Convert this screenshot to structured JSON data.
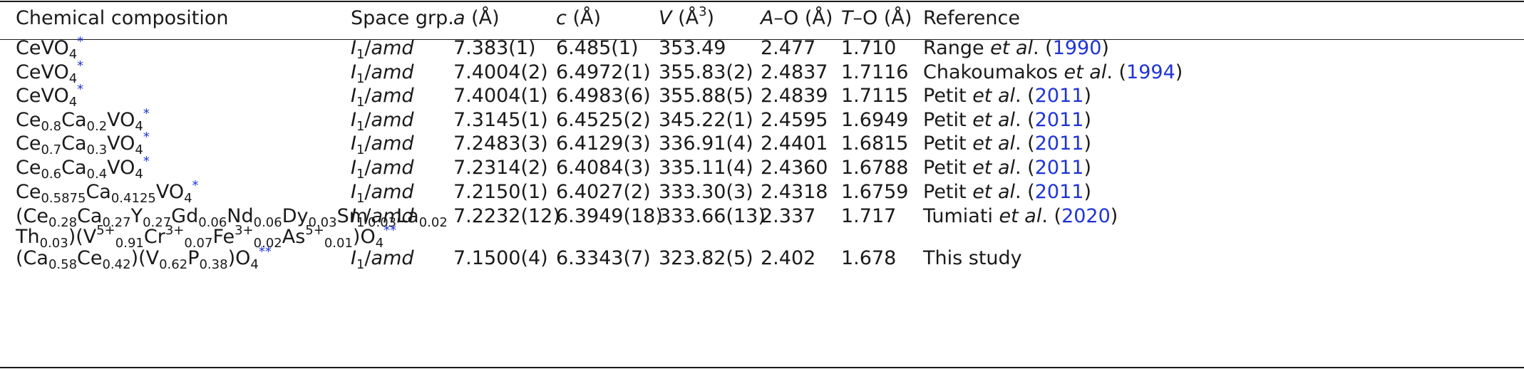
{
  "table": {
    "headers": {
      "composition": "Chemical composition",
      "space_group": "Space grp.",
      "a_sym": "a",
      "a_unit": " (Å)",
      "c_sym": "c",
      "c_unit": " (Å)",
      "v_sym": "V",
      "v_unit_pre": " (Å",
      "v_unit_sup": "3",
      "v_unit_post": ")",
      "ao_sym": "A",
      "ao_rest": "–O (Å)",
      "to_sym": "T",
      "to_rest": "–O (Å)",
      "reference": "Reference"
    },
    "space_group": {
      "italic_pre": "I",
      "sub": "1",
      "slash": "/",
      "italic_post": "amd"
    },
    "rows": [
      {
        "formula": [
          {
            "t": "CeVO"
          },
          {
            "b": "4"
          },
          {
            "star": "*"
          }
        ],
        "a": "7.383(1)",
        "c": "6.485(1)",
        "v": "353.49",
        "ao": "2.477",
        "to": "1.710",
        "ref_author": "Range ",
        "ref_etal": "et al",
        "ref_dot": ". (",
        "ref_year": "1990",
        "ref_close": ")"
      },
      {
        "formula": [
          {
            "t": "CeVO"
          },
          {
            "b": "4"
          },
          {
            "star": "*"
          }
        ],
        "a": "7.4004(2)",
        "c": "6.4972(1)",
        "v": "355.83(2)",
        "ao": "2.4837",
        "to": "1.7116",
        "ref_author": "Chakoumakos ",
        "ref_etal": "et al",
        "ref_dot": ". (",
        "ref_year": "1994",
        "ref_close": ")"
      },
      {
        "formula": [
          {
            "t": "CeVO"
          },
          {
            "b": "4"
          },
          {
            "star": "*"
          }
        ],
        "a": "7.4004(1)",
        "c": "6.4983(6)",
        "v": "355.88(5)",
        "ao": "2.4839",
        "to": "1.7115",
        "ref_author": "Petit ",
        "ref_etal": "et al",
        "ref_dot": ". (",
        "ref_year": "2011",
        "ref_close": ")"
      },
      {
        "formula": [
          {
            "t": "Ce"
          },
          {
            "b": "0.8"
          },
          {
            "t": "Ca"
          },
          {
            "b": "0.2"
          },
          {
            "t": "VO"
          },
          {
            "b": "4"
          },
          {
            "star": "*"
          }
        ],
        "a": "7.3145(1)",
        "c": "6.4525(2)",
        "v": "345.22(1)",
        "ao": "2.4595",
        "to": "1.6949",
        "ref_author": "Petit ",
        "ref_etal": "et al",
        "ref_dot": ". (",
        "ref_year": "2011",
        "ref_close": ")"
      },
      {
        "formula": [
          {
            "t": "Ce"
          },
          {
            "b": "0.7"
          },
          {
            "t": "Ca"
          },
          {
            "b": "0.3"
          },
          {
            "t": "VO"
          },
          {
            "b": "4"
          },
          {
            "star": "*"
          }
        ],
        "a": "7.2483(3)",
        "c": "6.4129(3)",
        "v": "336.91(4)",
        "ao": "2.4401",
        "to": "1.6815",
        "ref_author": "Petit ",
        "ref_etal": "et al",
        "ref_dot": ". (",
        "ref_year": "2011",
        "ref_close": ")"
      },
      {
        "formula": [
          {
            "t": "Ce"
          },
          {
            "b": "0.6"
          },
          {
            "t": "Ca"
          },
          {
            "b": "0.4"
          },
          {
            "t": "VO"
          },
          {
            "b": "4"
          },
          {
            "star": "*"
          }
        ],
        "a": "7.2314(2)",
        "c": "6.4084(3)",
        "v": "335.11(4)",
        "ao": "2.4360",
        "to": "1.6788",
        "ref_author": "Petit ",
        "ref_etal": "et al",
        "ref_dot": ". (",
        "ref_year": "2011",
        "ref_close": ")"
      },
      {
        "formula": [
          {
            "t": "Ce"
          },
          {
            "b": "0.5875"
          },
          {
            "t": "Ca"
          },
          {
            "b": "0.4125"
          },
          {
            "t": "VO"
          },
          {
            "b": "4"
          },
          {
            "star": "*"
          }
        ],
        "a": "7.2150(1)",
        "c": "6.4027(2)",
        "v": "333.30(3)",
        "ao": "2.4318",
        "to": "1.6759",
        "ref_author": "Petit ",
        "ref_etal": "et al",
        "ref_dot": ". (",
        "ref_year": "2011",
        "ref_close": ")"
      },
      {
        "formula": [
          {
            "t": "(Ce"
          },
          {
            "b": "0.28"
          },
          {
            "t": "Ca"
          },
          {
            "b": "0.27"
          },
          {
            "t": "Y"
          },
          {
            "b": "0.27"
          },
          {
            "t": "Gd"
          },
          {
            "b": "0.06"
          },
          {
            "t": "Nd"
          },
          {
            "b": "0.06"
          },
          {
            "t": "Dy"
          },
          {
            "b": "0.03"
          },
          {
            "t": "Sm"
          },
          {
            "b": "0.03"
          },
          {
            "t": "La"
          },
          {
            "b": "0.02"
          }
        ],
        "formula2": [
          {
            "t": "Th"
          },
          {
            "b": "0.03"
          },
          {
            "t": ")(V"
          },
          {
            "p": "5+"
          },
          {
            "b": "0.91"
          },
          {
            "t": "Cr"
          },
          {
            "p": "3+"
          },
          {
            "b": "0.07"
          },
          {
            "t": "Fe"
          },
          {
            "p": "3+"
          },
          {
            "b": "0.02"
          },
          {
            "t": "As"
          },
          {
            "p": "5+"
          },
          {
            "b": "0.01"
          },
          {
            "t": ")O"
          },
          {
            "b": "4"
          },
          {
            "star": "**"
          }
        ],
        "a": "7.2232(12)",
        "c": "6.3949(18)",
        "v": "333.66(13)",
        "ao": "2.337",
        "to": "1.717",
        "ref_author": "Tumiati ",
        "ref_etal": "et al",
        "ref_dot": ". (",
        "ref_year": "2020",
        "ref_close": ")"
      },
      {
        "formula": [
          {
            "t": "(Ca"
          },
          {
            "b": "0.58"
          },
          {
            "t": "Ce"
          },
          {
            "b": "0.42"
          },
          {
            "t": ")(V"
          },
          {
            "b": "0.62"
          },
          {
            "t": "P"
          },
          {
            "b": "0.38"
          },
          {
            "t": ")O"
          },
          {
            "b": "4"
          },
          {
            "star": "**"
          }
        ],
        "a": "7.1500(4)",
        "c": "6.3343(7)",
        "v": "323.82(5)",
        "ao": "2.402",
        "to": "1.678",
        "ref_plain": "This study"
      }
    ]
  },
  "colors": {
    "text": "#1a1a1a",
    "link": "#1f33d6"
  }
}
